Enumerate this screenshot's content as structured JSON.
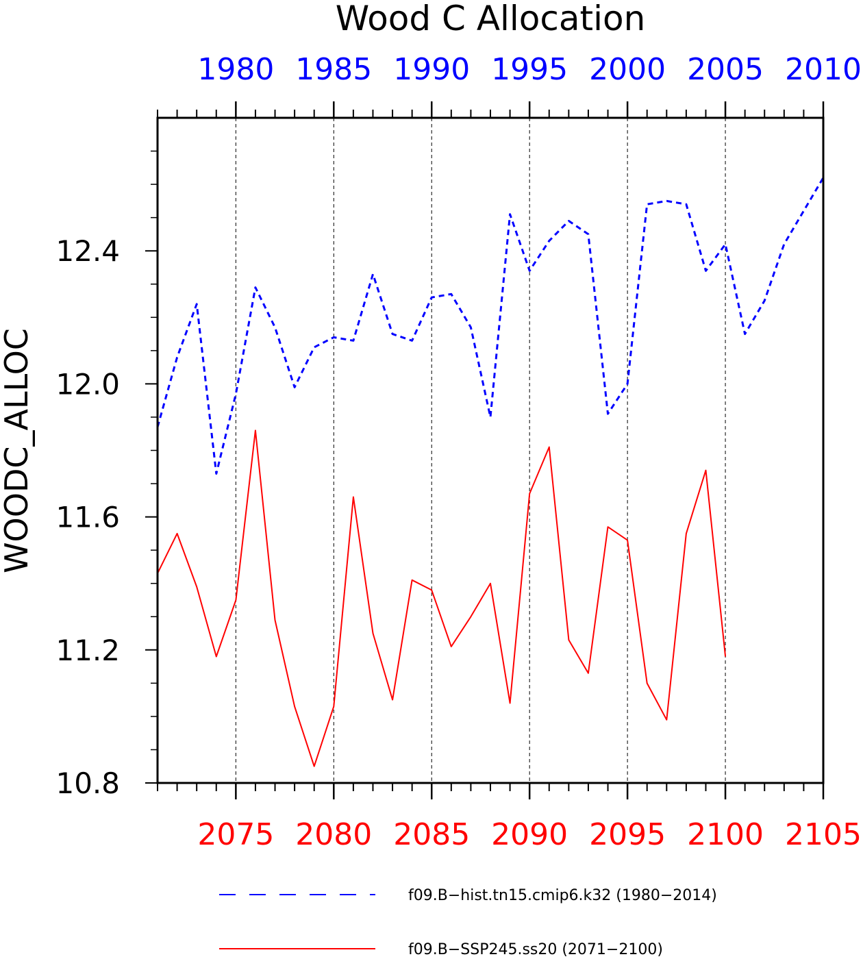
{
  "chart_data": {
    "type": "line",
    "title": "Wood C Allocation",
    "ylabel": "WOODC_ALLOC",
    "ylim": [
      10.8,
      12.8
    ],
    "yticks": [
      "10.8",
      "11.2",
      "11.6",
      "12.0",
      "12.4"
    ],
    "grid": "vertical dashed lines at bottom-axis major ticks",
    "top_axis": {
      "color": "#0000ff",
      "range": [
        1976,
        2010
      ],
      "ticks": [
        "1980",
        "1985",
        "1990",
        "1995",
        "2000",
        "2005",
        "2010"
      ]
    },
    "bottom_axis": {
      "color": "#ff0000",
      "range": [
        2071,
        2105
      ],
      "ticks": [
        "2075",
        "2080",
        "2085",
        "2090",
        "2095",
        "2100",
        "2105"
      ]
    },
    "series": [
      {
        "name": "f09.B-hist.tn15.cmip6.k32 (1980-2014)",
        "axis": "top",
        "color": "#0000ff",
        "dash": "dashed",
        "x": [
          1976,
          1977,
          1978,
          1979,
          1980,
          1981,
          1982,
          1983,
          1984,
          1985,
          1986,
          1987,
          1988,
          1989,
          1990,
          1991,
          1992,
          1993,
          1994,
          1995,
          1996,
          1997,
          1998,
          1999,
          2000,
          2001,
          2002,
          2003,
          2004,
          2005,
          2006,
          2007,
          2008,
          2009,
          2010
        ],
        "values": [
          11.87,
          12.08,
          12.24,
          11.73,
          11.97,
          12.29,
          12.17,
          11.99,
          12.11,
          12.14,
          12.13,
          12.33,
          12.15,
          12.13,
          12.26,
          12.27,
          12.17,
          11.9,
          12.51,
          12.34,
          12.43,
          12.49,
          12.45,
          11.91,
          12.0,
          12.54,
          12.55,
          12.54,
          12.34,
          12.42,
          12.15,
          12.25,
          12.42,
          12.52,
          12.62
        ]
      },
      {
        "name": "f09.B-SSP245.ss20 (2071-2100)",
        "axis": "bottom",
        "color": "#ff0000",
        "dash": "solid",
        "x": [
          2071,
          2072,
          2073,
          2074,
          2075,
          2076,
          2077,
          2078,
          2079,
          2080,
          2081,
          2082,
          2083,
          2084,
          2085,
          2086,
          2087,
          2088,
          2089,
          2090,
          2091,
          2092,
          2093,
          2094,
          2095,
          2096,
          2097,
          2098,
          2099,
          2100
        ],
        "values": [
          11.43,
          11.55,
          11.39,
          11.18,
          11.35,
          11.86,
          11.29,
          11.03,
          10.85,
          11.03,
          11.66,
          11.25,
          11.05,
          11.41,
          11.38,
          11.21,
          11.3,
          11.4,
          11.04,
          11.67,
          11.81,
          11.23,
          11.13,
          11.57,
          11.53,
          11.1,
          10.99,
          11.55,
          11.74,
          11.18
        ]
      }
    ],
    "legend": {
      "placement": "bottom",
      "entries": [
        "f09.B−hist.tn15.cmip6.k32 (1980−2014)",
        "f09.B−SSP245.ss20 (2071−2100)"
      ]
    }
  }
}
